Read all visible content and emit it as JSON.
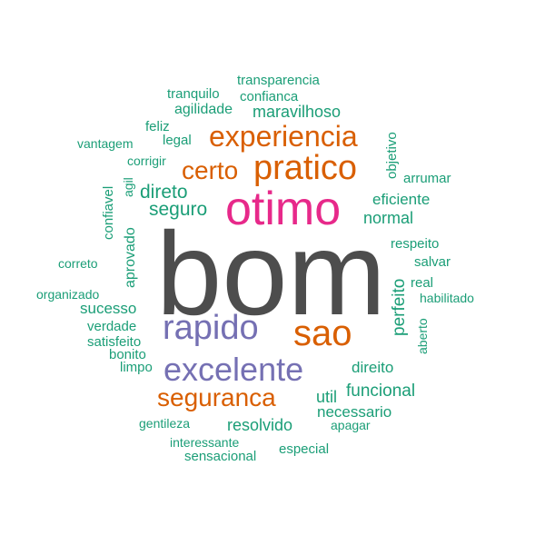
{
  "colors": {
    "gray": "#4d4d4d",
    "magenta": "#e7298a",
    "orange": "#d95f02",
    "purple": "#7570b3",
    "green": "#1b9e77"
  },
  "words": [
    {
      "text": "bom",
      "color": "gray"
    },
    {
      "text": "otimo",
      "color": "magenta"
    },
    {
      "text": "excelente",
      "color": "purple"
    },
    {
      "text": "rapido",
      "color": "purple"
    },
    {
      "text": "sao",
      "color": "orange"
    },
    {
      "text": "pratico",
      "color": "orange"
    },
    {
      "text": "experiencia",
      "color": "orange"
    },
    {
      "text": "seguranca",
      "color": "orange"
    },
    {
      "text": "certo",
      "color": "orange"
    },
    {
      "text": "direto",
      "color": "green"
    },
    {
      "text": "seguro",
      "color": "green"
    },
    {
      "text": "normal",
      "color": "green"
    },
    {
      "text": "eficiente",
      "color": "green"
    },
    {
      "text": "maravilhoso",
      "color": "green"
    },
    {
      "text": "agilidade",
      "color": "green"
    },
    {
      "text": "confianca",
      "color": "green"
    },
    {
      "text": "transparencia",
      "color": "green"
    },
    {
      "text": "tranquilo",
      "color": "green"
    },
    {
      "text": "feliz",
      "color": "green"
    },
    {
      "text": "legal",
      "color": "green"
    },
    {
      "text": "vantagem",
      "color": "green"
    },
    {
      "text": "corrigir",
      "color": "green"
    },
    {
      "text": "objetivo",
      "color": "green"
    },
    {
      "text": "arrumar",
      "color": "green"
    },
    {
      "text": "agil",
      "color": "green"
    },
    {
      "text": "confiavel",
      "color": "green"
    },
    {
      "text": "aprovado",
      "color": "green"
    },
    {
      "text": "respeito",
      "color": "green"
    },
    {
      "text": "salvar",
      "color": "green"
    },
    {
      "text": "correto",
      "color": "green"
    },
    {
      "text": "perfeito",
      "color": "green"
    },
    {
      "text": "real",
      "color": "green"
    },
    {
      "text": "organizado",
      "color": "green"
    },
    {
      "text": "habilitado",
      "color": "green"
    },
    {
      "text": "sucesso",
      "color": "green"
    },
    {
      "text": "aberto",
      "color": "green"
    },
    {
      "text": "verdade",
      "color": "green"
    },
    {
      "text": "satisfeito",
      "color": "green"
    },
    {
      "text": "bonito",
      "color": "green"
    },
    {
      "text": "limpo",
      "color": "green"
    },
    {
      "text": "direito",
      "color": "green"
    },
    {
      "text": "util",
      "color": "green"
    },
    {
      "text": "funcional",
      "color": "green"
    },
    {
      "text": "necessario",
      "color": "green"
    },
    {
      "text": "gentileza",
      "color": "green"
    },
    {
      "text": "resolvido",
      "color": "green"
    },
    {
      "text": "apagar",
      "color": "green"
    },
    {
      "text": "interessante",
      "color": "green"
    },
    {
      "text": "especial",
      "color": "green"
    },
    {
      "text": "sensacional",
      "color": "green"
    }
  ]
}
